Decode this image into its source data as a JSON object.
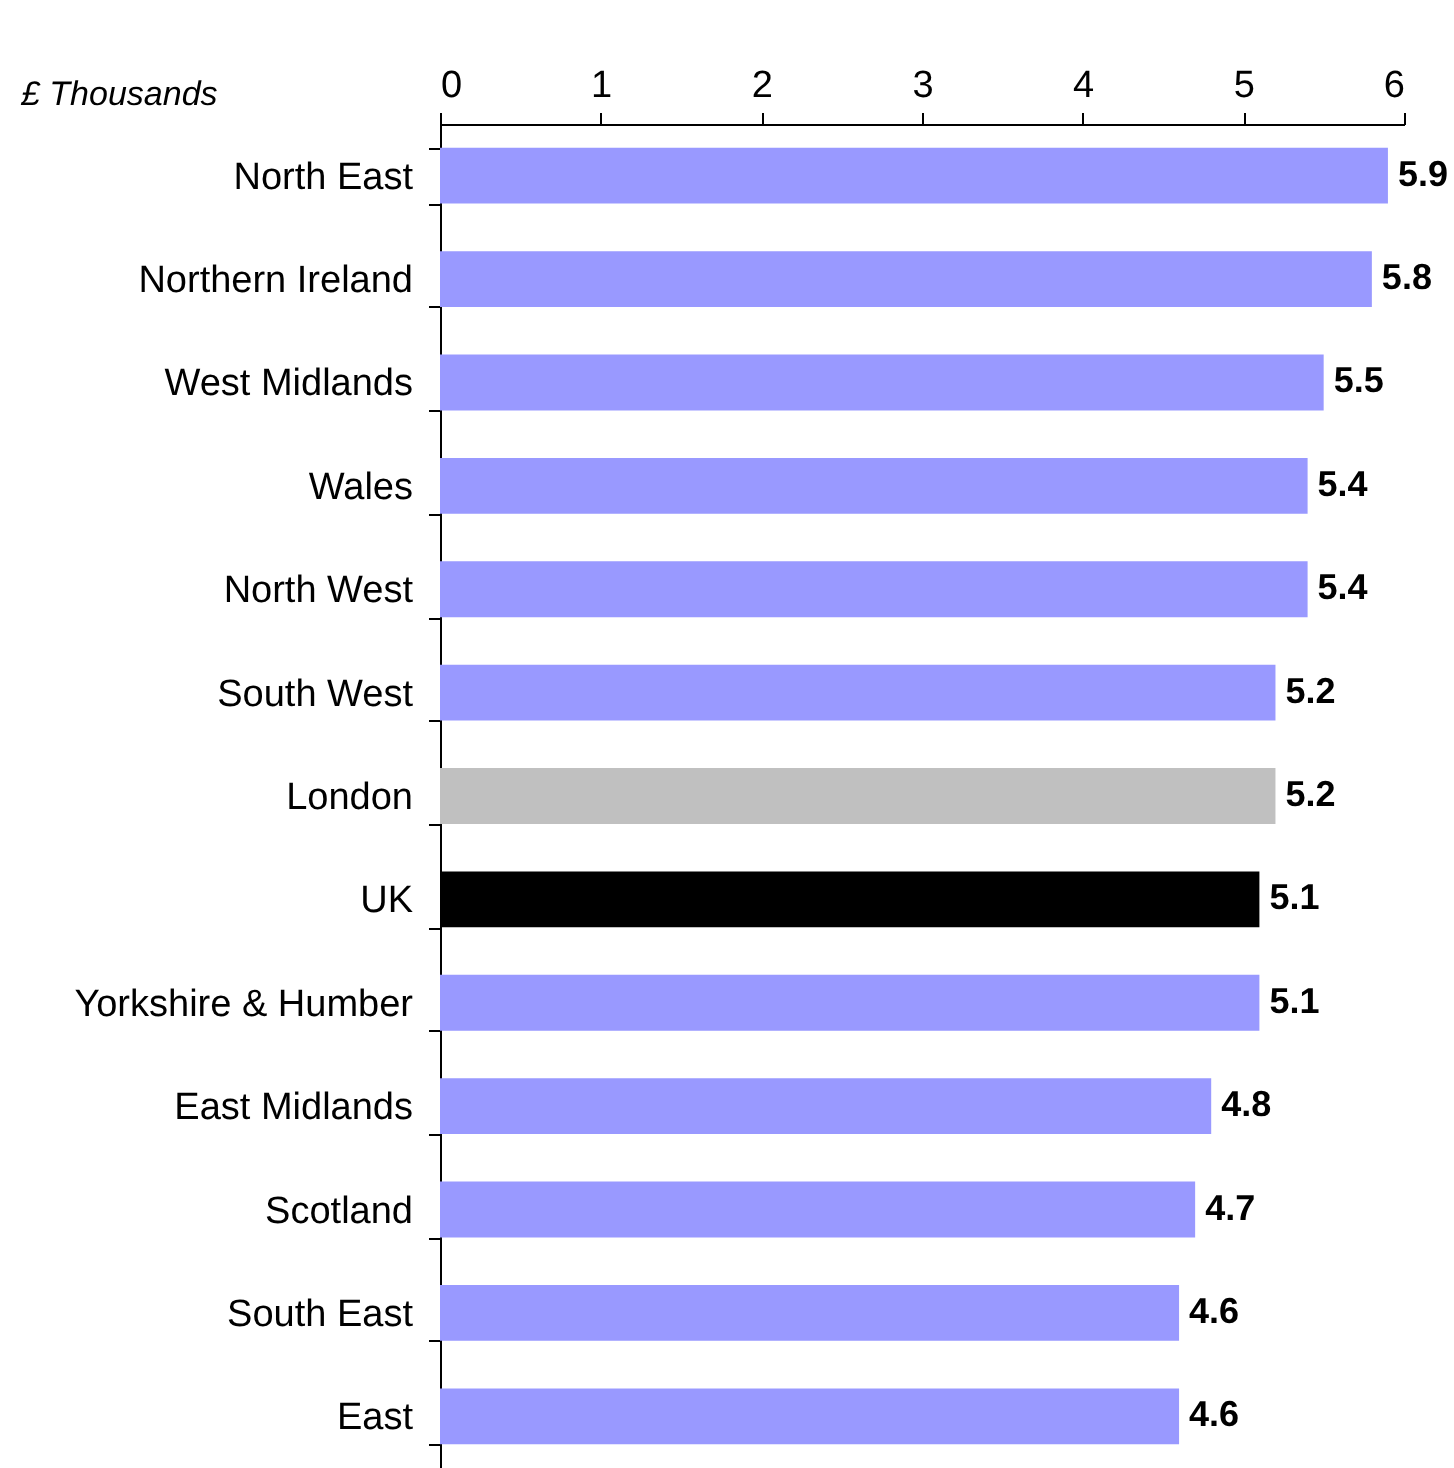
{
  "chart_data": {
    "type": "bar",
    "orientation": "horizontal",
    "xlabel": "£ Thousands",
    "categories": [
      "North East",
      "Northern Ireland",
      "West Midlands",
      "Wales",
      "North West",
      "South West",
      "London",
      "UK",
      "Yorkshire & Humber",
      "East Midlands",
      "Scotland",
      "South East",
      "East"
    ],
    "values": [
      5.9,
      5.8,
      5.5,
      5.4,
      5.4,
      5.2,
      5.2,
      5.1,
      5.1,
      4.8,
      4.7,
      4.6,
      4.6
    ],
    "colors": [
      "#9999ff",
      "#9999ff",
      "#9999ff",
      "#9999ff",
      "#9999ff",
      "#9999ff",
      "#c0c0c0",
      "#000000",
      "#9999ff",
      "#9999ff",
      "#9999ff",
      "#9999ff",
      "#9999ff"
    ],
    "xlim": [
      0,
      6
    ],
    "xticks": [
      0,
      1,
      2,
      3,
      4,
      5,
      6
    ],
    "data_labels": true,
    "grid": false
  }
}
